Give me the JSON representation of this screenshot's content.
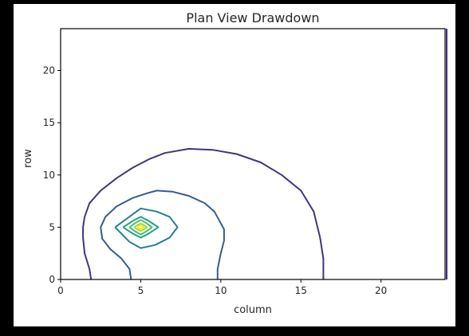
{
  "chart_data": {
    "type": "contour",
    "title": "Plan View Drawdown",
    "xlabel": "column",
    "ylabel": "row",
    "xlim": [
      0,
      24
    ],
    "ylim": [
      0,
      24
    ],
    "xticks": [
      0,
      5,
      10,
      15,
      20
    ],
    "yticks": [
      0,
      5,
      10,
      15,
      20
    ],
    "grid": false,
    "legend": "none",
    "contours": [
      {
        "level_index": 1,
        "color": "#46337e",
        "segments": [
          [
            [
              1.9,
              0
            ],
            [
              1.8,
              1
            ],
            [
              1.5,
              2.5
            ],
            [
              1.4,
              4
            ],
            [
              1.4,
              5
            ],
            [
              1.5,
              6
            ],
            [
              1.8,
              7.3
            ],
            [
              2.5,
              8.5
            ],
            [
              3.5,
              9.7
            ],
            [
              4.5,
              10.7
            ],
            [
              5.5,
              11.5
            ],
            [
              6.5,
              12.1
            ],
            [
              8,
              12.5
            ],
            [
              9.5,
              12.4
            ],
            [
              11,
              12
            ],
            [
              12.5,
              11.2
            ],
            [
              13.8,
              10
            ],
            [
              15,
              8.5
            ],
            [
              15.8,
              6.5
            ],
            [
              16.2,
              4
            ],
            [
              16.4,
              2
            ],
            [
              16.4,
              0
            ]
          ],
          [
            [
              24.1,
              0
            ],
            [
              24.1,
              24
            ]
          ]
        ]
      },
      {
        "level_index": 2,
        "color": "#365c8d",
        "segments": [
          [
            [
              4.4,
              0
            ],
            [
              4.3,
              1
            ],
            [
              3.8,
              2
            ],
            [
              3.1,
              2.9
            ],
            [
              2.6,
              3.9
            ],
            [
              2.5,
              5
            ],
            [
              2.8,
              6
            ],
            [
              3.5,
              7
            ],
            [
              4.5,
              7.8
            ],
            [
              5.5,
              8.3
            ],
            [
              6,
              8.5
            ],
            [
              7,
              8.4
            ],
            [
              8,
              8
            ],
            [
              9,
              7.3
            ],
            [
              9.6,
              6.5
            ],
            [
              10.2,
              4.8
            ],
            [
              10.2,
              3.7
            ],
            [
              10,
              2.5
            ],
            [
              9.8,
              1
            ],
            [
              9.8,
              0
            ]
          ]
        ]
      },
      {
        "level_index": 3,
        "color": "#277f8e",
        "segments": [
          [
            [
              3.4,
              5
            ],
            [
              4.2,
              5.9
            ],
            [
              5,
              6.8
            ],
            [
              6,
              6.5
            ],
            [
              6.8,
              6
            ],
            [
              7.3,
              5
            ],
            [
              6.8,
              4
            ],
            [
              5.9,
              3.3
            ],
            [
              5,
              3
            ],
            [
              4.3,
              3.6
            ],
            [
              3.4,
              5
            ]
          ]
        ]
      },
      {
        "level_index": 4,
        "color": "#1fa187",
        "segments": [
          [
            [
              3.9,
              5
            ],
            [
              4.5,
              5.6
            ],
            [
              5,
              6
            ],
            [
              5.5,
              5.6
            ],
            [
              6.1,
              5
            ],
            [
              5.5,
              4.4
            ],
            [
              5,
              4
            ],
            [
              4.5,
              4.4
            ],
            [
              3.9,
              5
            ]
          ]
        ]
      },
      {
        "level_index": 5,
        "color": "#4ac16d",
        "segments": [
          [
            [
              4.3,
              5
            ],
            [
              4.65,
              5.4
            ],
            [
              5,
              5.7
            ],
            [
              5.35,
              5.4
            ],
            [
              5.7,
              5
            ],
            [
              5.35,
              4.6
            ],
            [
              5,
              4.3
            ],
            [
              4.65,
              4.6
            ],
            [
              4.3,
              5
            ]
          ]
        ]
      },
      {
        "level_index": 6,
        "color": "#a0da39",
        "segments": [
          [
            [
              4.6,
              5
            ],
            [
              4.8,
              5.2
            ],
            [
              5,
              5.35
            ],
            [
              5.2,
              5.2
            ],
            [
              5.4,
              5
            ],
            [
              5.2,
              4.8
            ],
            [
              5,
              4.65
            ],
            [
              4.8,
              4.8
            ],
            [
              4.6,
              5
            ]
          ]
        ]
      },
      {
        "level_index": 7,
        "color": "#fde725",
        "segments": [
          [
            [
              4.8,
              5
            ],
            [
              4.9,
              5.1
            ],
            [
              5,
              5.15
            ],
            [
              5.1,
              5.1
            ],
            [
              5.2,
              5
            ],
            [
              5.1,
              4.9
            ],
            [
              5,
              4.85
            ],
            [
              4.9,
              4.9
            ],
            [
              4.8,
              5
            ]
          ]
        ]
      }
    ]
  }
}
